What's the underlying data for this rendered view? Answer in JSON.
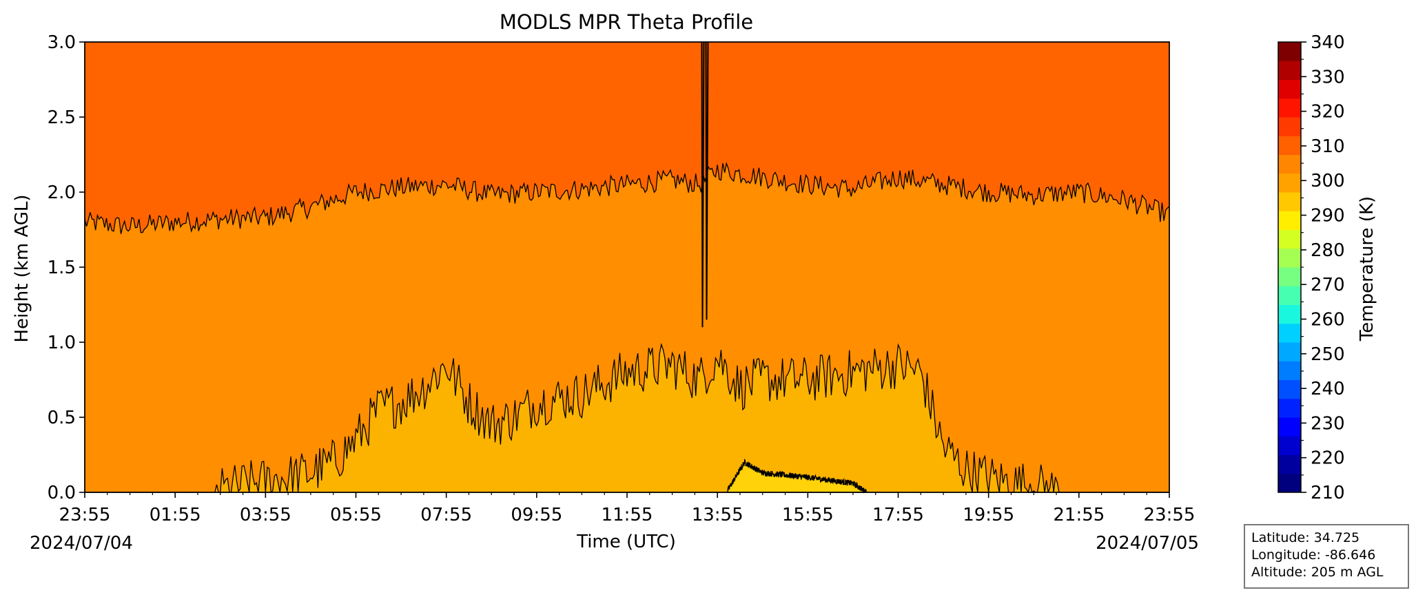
{
  "chart_data": {
    "type": "heatmap",
    "title": "MODLS MPR Theta Profile",
    "xlabel": "Time (UTC)",
    "ylabel": "Height (km AGL)",
    "x_ticks": [
      "23:55",
      "01:55",
      "03:55",
      "05:55",
      "07:55",
      "09:55",
      "11:55",
      "13:55",
      "15:55",
      "17:55",
      "19:55",
      "21:55",
      "23:55"
    ],
    "x_start_date": "2024/07/04",
    "x_end_date": "2024/07/05",
    "ylim": [
      0,
      3
    ],
    "y_ticks": [
      "0.0",
      "0.5",
      "1.0",
      "1.5",
      "2.0",
      "2.5",
      "3.0"
    ],
    "colorbar": {
      "label": "Temperature (K)",
      "range": [
        210,
        340
      ],
      "ticks": [
        "210",
        "220",
        "230",
        "240",
        "250",
        "260",
        "270",
        "280",
        "290",
        "300",
        "310",
        "320",
        "330",
        "340"
      ],
      "colors": [
        "#00007f",
        "#00009f",
        "#0000cf",
        "#0000ff",
        "#0022ff",
        "#0050ff",
        "#007dff",
        "#00a8ff",
        "#00d0ff",
        "#19f8de",
        "#47ffb0",
        "#76ff80",
        "#a4ff52",
        "#d3ff23",
        "#ffee00",
        "#ffc800",
        "#ffa200",
        "#ff8600",
        "#ff6000",
        "#ff3a00",
        "#ff1400",
        "#e00000",
        "#b00000",
        "#7f0000"
      ]
    },
    "fill_levels": {
      "upper": "#ff6400",
      "middle": "#ff8e00",
      "lower": "#fcb300",
      "lowest": "#ffd20a"
    },
    "contours": [
      {
        "level": "upper boundary (km)",
        "x_hours": [
          0,
          1,
          2,
          3,
          4,
          5,
          6,
          7,
          8,
          9,
          10,
          11,
          12,
          13,
          13.6,
          14,
          15,
          16,
          17,
          18,
          19,
          20,
          21,
          22,
          23,
          24
        ],
        "y_km": [
          1.8,
          1.77,
          1.8,
          1.82,
          1.83,
          1.9,
          2.0,
          2.03,
          2.05,
          1.98,
          2.0,
          2.02,
          2.05,
          2.08,
          2.05,
          2.15,
          2.1,
          2.05,
          2.02,
          2.1,
          2.05,
          2.0,
          1.98,
          2.0,
          1.95,
          1.85
        ]
      },
      {
        "level": "lower boundary (km)",
        "x_hours": [
          0,
          2.9,
          3.5,
          4.5,
          5.0,
          5.5,
          6.0,
          6.5,
          7.0,
          7.5,
          8.0,
          8.5,
          9.0,
          9.5,
          10.0,
          11.0,
          12.0,
          13.0,
          13.6,
          14.0,
          14.5,
          15.0,
          16.0,
          17.0,
          18.0,
          18.5,
          19.0,
          19.5,
          20.0,
          20.5,
          21.0,
          21.6,
          24.0
        ],
        "y_km": [
          0,
          0,
          0.05,
          0.1,
          0.13,
          0.2,
          0.35,
          0.55,
          0.6,
          0.7,
          0.85,
          0.6,
          0.45,
          0.5,
          0.6,
          0.65,
          0.8,
          0.85,
          0.75,
          0.9,
          0.7,
          0.75,
          0.75,
          0.8,
          0.85,
          0.8,
          0.3,
          0.15,
          0.1,
          0.06,
          0.05,
          0,
          0
        ]
      },
      {
        "level": "lowest boundary (km)",
        "x_hours": [
          14.2,
          14.6,
          15.0,
          16.0,
          17.0,
          17.3
        ],
        "y_km": [
          0,
          0.2,
          0.13,
          0.1,
          0.06,
          0
        ]
      }
    ],
    "grid": false,
    "legend": "none"
  },
  "info_box": {
    "latitude": "Latitude: 34.725",
    "longitude": "Longitude: -86.646",
    "altitude": "Altitude: 205 m AGL"
  }
}
